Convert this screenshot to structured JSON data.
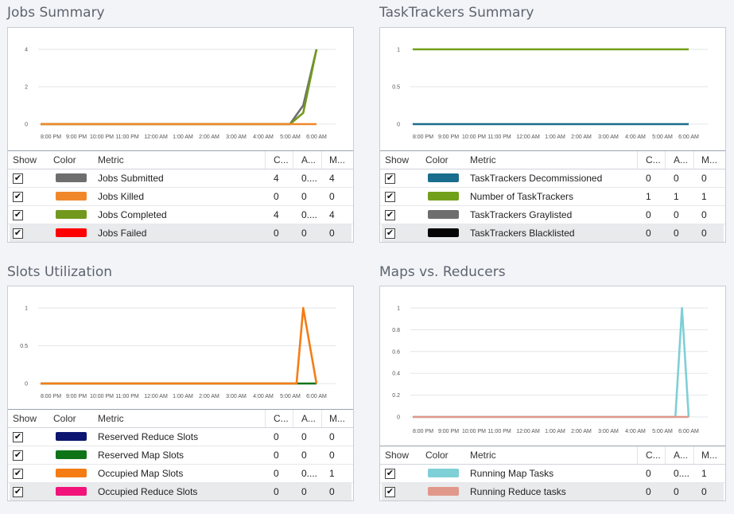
{
  "panels": [
    {
      "title": "Jobs Summary",
      "y_ticks": [
        "4",
        "2",
        "0"
      ],
      "x_ticks": [
        "8:00 PM",
        "9:00 PM",
        "10:00 PM",
        "11:00 PM",
        "12:00 AM",
        "1:00 AM",
        "2:00 AM",
        "3:00 AM",
        "4:00 AM",
        "5:00 AM",
        "6:00 AM"
      ],
      "header": {
        "show": "Show",
        "color": "Color",
        "metric": "Metric",
        "cur": "C...",
        "avg": "A...",
        "max": "M..."
      },
      "rows": [
        {
          "checked": true,
          "color": "#6e6e6e",
          "metric": "Jobs Submitted",
          "cur": "4",
          "avg": "0....",
          "max": "4"
        },
        {
          "checked": true,
          "color": "#f0882a",
          "metric": "Jobs Killed",
          "cur": "0",
          "avg": "0",
          "max": "0"
        },
        {
          "checked": true,
          "color": "#72991d",
          "metric": "Jobs Completed",
          "cur": "4",
          "avg": "0....",
          "max": "4"
        },
        {
          "checked": true,
          "color": "#ff0000",
          "metric": "Jobs Failed",
          "cur": "0",
          "avg": "0",
          "max": "0"
        }
      ]
    },
    {
      "title": "TaskTrackers Summary",
      "y_ticks": [
        "1",
        "0.5",
        "0"
      ],
      "x_ticks": [
        "8:00 PM",
        "9:00 PM",
        "10:00 PM",
        "11:00 PM",
        "12:00 AM",
        "1:00 AM",
        "2:00 AM",
        "3:00 AM",
        "4:00 AM",
        "5:00 AM",
        "6:00 AM"
      ],
      "header": {
        "show": "Show",
        "color": "Color",
        "metric": "Metric",
        "cur": "C...",
        "avg": "A...",
        "max": "M..."
      },
      "rows": [
        {
          "checked": true,
          "color": "#1a6d8c",
          "metric": "TaskTrackers Decommissioned",
          "cur": "0",
          "avg": "0",
          "max": "0"
        },
        {
          "checked": true,
          "color": "#72a01a",
          "metric": "Number of TaskTrackers",
          "cur": "1",
          "avg": "1",
          "max": "1"
        },
        {
          "checked": true,
          "color": "#6e6e6e",
          "metric": "TaskTrackers Graylisted",
          "cur": "0",
          "avg": "0",
          "max": "0"
        },
        {
          "checked": true,
          "color": "#050505",
          "metric": "TaskTrackers Blacklisted",
          "cur": "0",
          "avg": "0",
          "max": "0"
        }
      ]
    },
    {
      "title": "Slots Utilization",
      "y_ticks": [
        "1",
        "0.5",
        "0"
      ],
      "x_ticks": [
        "8:00 PM",
        "9:00 PM",
        "10:00 PM",
        "11:00 PM",
        "12:00 AM",
        "1:00 AM",
        "2:00 AM",
        "3:00 AM",
        "4:00 AM",
        "5:00 AM",
        "6:00 AM"
      ],
      "header": {
        "show": "Show",
        "color": "Color",
        "metric": "Metric",
        "cur": "C...",
        "avg": "A...",
        "max": "M..."
      },
      "rows": [
        {
          "checked": true,
          "color": "#0c1570",
          "metric": "Reserved Reduce Slots",
          "cur": "0",
          "avg": "0",
          "max": "0"
        },
        {
          "checked": true,
          "color": "#0f7418",
          "metric": "Reserved Map Slots",
          "cur": "0",
          "avg": "0",
          "max": "0"
        },
        {
          "checked": true,
          "color": "#f57c14",
          "metric": "Occupied Map Slots",
          "cur": "0",
          "avg": "0....",
          "max": "1"
        },
        {
          "checked": true,
          "color": "#f2137a",
          "metric": "Occupied Reduce Slots",
          "cur": "0",
          "avg": "0",
          "max": "0"
        }
      ]
    },
    {
      "title": "Maps vs. Reducers",
      "y_ticks": [
        "1",
        "0.8",
        "0.6",
        "0.4",
        "0.2",
        "0"
      ],
      "x_ticks": [
        "8:00 PM",
        "9:00 PM",
        "10:00 PM",
        "11:00 PM",
        "12:00 AM",
        "1:00 AM",
        "2:00 AM",
        "3:00 AM",
        "4:00 AM",
        "5:00 AM",
        "6:00 AM"
      ],
      "header": {
        "show": "Show",
        "color": "Color",
        "metric": "Metric",
        "cur": "C...",
        "avg": "A...",
        "max": "M..."
      },
      "rows": [
        {
          "checked": true,
          "color": "#7fcfd6",
          "metric": "Running Map Tasks",
          "cur": "0",
          "avg": "0....",
          "max": "1"
        },
        {
          "checked": true,
          "color": "#e0988a",
          "metric": "Running Reduce tasks",
          "cur": "0",
          "avg": "0",
          "max": "0"
        }
      ]
    }
  ],
  "chart_data": [
    {
      "type": "line",
      "ylim": [
        0,
        4
      ],
      "x": [
        "8:00 PM",
        "9:00 PM",
        "10:00 PM",
        "11:00 PM",
        "12:00 AM",
        "1:00 AM",
        "2:00 AM",
        "3:00 AM",
        "4:00 AM",
        "5:00 AM",
        "5:30 AM",
        "6:00 AM"
      ],
      "series": [
        {
          "name": "Jobs Submitted",
          "color": "#6e6e6e",
          "values": [
            0,
            0,
            0,
            0,
            0,
            0,
            0,
            0,
            0,
            0,
            1,
            4
          ]
        },
        {
          "name": "Jobs Completed",
          "color": "#72991d",
          "values": [
            0,
            0,
            0,
            0,
            0,
            0,
            0,
            0,
            0,
            0,
            0.6,
            4
          ]
        },
        {
          "name": "Jobs Killed",
          "color": "#f0882a",
          "values": [
            0,
            0,
            0,
            0,
            0,
            0,
            0,
            0,
            0,
            0,
            0,
            0
          ]
        }
      ]
    },
    {
      "type": "line",
      "ylim": [
        0,
        1
      ],
      "x": [
        "8:00 PM",
        "9:00 PM",
        "10:00 PM",
        "11:00 PM",
        "12:00 AM",
        "1:00 AM",
        "2:00 AM",
        "3:00 AM",
        "4:00 AM",
        "5:00 AM",
        "6:00 AM"
      ],
      "series": [
        {
          "name": "Number of TaskTrackers",
          "color": "#72a01a",
          "values": [
            1,
            1,
            1,
            1,
            1,
            1,
            1,
            1,
            1,
            1,
            1
          ]
        },
        {
          "name": "TaskTrackers Decommissioned",
          "color": "#1a6d8c",
          "values": [
            0,
            0,
            0,
            0,
            0,
            0,
            0,
            0,
            0,
            0,
            0
          ]
        }
      ]
    },
    {
      "type": "line",
      "ylim": [
        0,
        1
      ],
      "x": [
        "8:00 PM",
        "9:00 PM",
        "10:00 PM",
        "11:00 PM",
        "12:00 AM",
        "1:00 AM",
        "2:00 AM",
        "3:00 AM",
        "4:00 AM",
        "5:00 AM",
        "5:15 AM",
        "5:30 AM",
        "6:00 AM"
      ],
      "series": [
        {
          "name": "Reserved Map Slots",
          "color": "#0f7418",
          "values": [
            0,
            0,
            0,
            0,
            0,
            0,
            0,
            0,
            0,
            0,
            0,
            0,
            0
          ]
        },
        {
          "name": "Occupied Map Slots",
          "color": "#f57c14",
          "values": [
            0,
            0,
            0,
            0,
            0,
            0,
            0,
            0,
            0,
            0,
            0,
            1,
            0
          ]
        }
      ]
    },
    {
      "type": "line",
      "ylim": [
        0,
        1
      ],
      "x": [
        "8:00 PM",
        "9:00 PM",
        "10:00 PM",
        "11:00 PM",
        "12:00 AM",
        "1:00 AM",
        "2:00 AM",
        "3:00 AM",
        "4:00 AM",
        "5:00 AM",
        "5:30 AM",
        "5:45 AM",
        "6:00 AM"
      ],
      "series": [
        {
          "name": "Running Map Tasks",
          "color": "#7fcfd6",
          "values": [
            0,
            0,
            0,
            0,
            0,
            0,
            0,
            0,
            0,
            0,
            0,
            1,
            0
          ]
        },
        {
          "name": "Running Reduce tasks",
          "color": "#e0988a",
          "values": [
            0,
            0,
            0,
            0,
            0,
            0,
            0,
            0,
            0,
            0,
            0,
            0,
            0
          ]
        }
      ]
    }
  ]
}
